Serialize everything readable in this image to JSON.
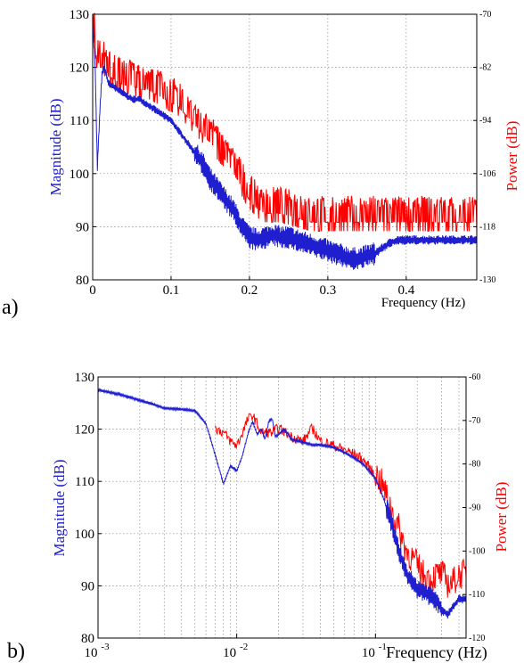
{
  "panels": [
    {
      "label": "a)"
    },
    {
      "label": "b)"
    }
  ],
  "chart_data": [
    {
      "type": "line",
      "x_scale": "linear",
      "xlim": [
        0,
        0.49
      ],
      "ylim": [
        80,
        130
      ],
      "y2lim": [
        -130,
        -70
      ],
      "xlabel": "Frequency (Hz)",
      "ylabel": "Magnitude (dB)",
      "y2label": "Power (dB)",
      "x_ticks": [
        0,
        0.1,
        0.2,
        0.3,
        0.4
      ],
      "x_tick_labels": [
        "0",
        "0.1",
        "0.2",
        "0.3",
        "0.4"
      ],
      "y_ticks": [
        80,
        90,
        100,
        110,
        120,
        130
      ],
      "y2_ticks": [
        -130,
        -118,
        -106,
        -94,
        -82,
        -70
      ],
      "grid": true,
      "colors": {
        "magnitude": "#1f1fd0",
        "power": "#ff0000"
      },
      "series": [
        {
          "axis": "left",
          "x": [
            0,
            0.003,
            0.006,
            0.008,
            0.01,
            0.012,
            0.015,
            0.02,
            0.03,
            0.04,
            0.05,
            0.06,
            0.07,
            0.08,
            0.09,
            0.1,
            0.11,
            0.12,
            0.13,
            0.14,
            0.15,
            0.16,
            0.17,
            0.18,
            0.19,
            0.2,
            0.21,
            0.22,
            0.23,
            0.24,
            0.25,
            0.26,
            0.27,
            0.28,
            0.29,
            0.3,
            0.31,
            0.32,
            0.33,
            0.34,
            0.35,
            0.36,
            0.37,
            0.38,
            0.39,
            0.4,
            0.41,
            0.42,
            0.43,
            0.44,
            0.45,
            0.46,
            0.47,
            0.48,
            0.49
          ],
          "y": [
            128,
            121,
            101,
            108,
            114,
            119,
            120,
            117,
            116,
            115,
            114,
            114,
            113,
            112,
            111,
            110,
            108,
            106,
            104,
            102,
            99,
            97,
            95,
            93,
            90,
            88,
            87.5,
            88,
            88.5,
            88,
            88,
            87.5,
            87,
            86.5,
            86,
            85.5,
            85,
            84.5,
            84,
            84,
            84.5,
            85,
            86,
            87,
            87.5,
            87.5,
            87.5,
            87.5,
            87.5,
            87.5,
            87.5,
            87.5,
            87.5,
            87.5,
            87.5
          ]
        },
        {
          "axis": "right",
          "x": [
            0,
            0.005,
            0.01,
            0.015,
            0.02,
            0.03,
            0.04,
            0.05,
            0.06,
            0.07,
            0.08,
            0.09,
            0.1,
            0.11,
            0.12,
            0.13,
            0.14,
            0.15,
            0.16,
            0.17,
            0.18,
            0.19,
            0.2,
            0.21,
            0.22,
            0.23,
            0.24,
            0.25,
            0.26,
            0.27,
            0.28,
            0.29,
            0.3,
            0.31,
            0.32,
            0.33,
            0.34,
            0.35,
            0.36,
            0.37,
            0.38,
            0.39,
            0.4,
            0.41,
            0.42,
            0.43,
            0.44,
            0.45,
            0.46,
            0.47,
            0.48,
            0.49
          ],
          "y": [
            -72,
            -80,
            -82,
            -82,
            -84,
            -85,
            -86,
            -86,
            -87,
            -87,
            -88,
            -89,
            -90,
            -91,
            -93,
            -95,
            -97,
            -99,
            -101,
            -103,
            -106,
            -109,
            -112,
            -114,
            -115,
            -115,
            -115,
            -115.5,
            -116,
            -116.5,
            -117,
            -117,
            -117,
            -117,
            -117,
            -117,
            -117,
            -117,
            -117,
            -117,
            -117,
            -117,
            -117,
            -117,
            -117,
            -117,
            -117,
            -117,
            -117,
            -117,
            -117,
            -117
          ]
        }
      ]
    },
    {
      "type": "line",
      "x_scale": "log",
      "xlim": [
        0.001,
        0.45
      ],
      "ylim": [
        80,
        130
      ],
      "y2lim": [
        -120,
        -60
      ],
      "xlabel": "Frequency (Hz)",
      "ylabel": "Magnitude (dB)",
      "y2label": "Power (dB)",
      "x_ticks": [
        0.001,
        0.01,
        0.1
      ],
      "x_tick_labels": [
        {
          "base": "10",
          "exp": "-3"
        },
        {
          "base": "10",
          "exp": "-2"
        },
        {
          "base": "10",
          "exp": "-1"
        }
      ],
      "y_ticks": [
        80,
        90,
        100,
        110,
        120,
        130
      ],
      "y2_ticks": [
        -120,
        -110,
        -100,
        -90,
        -80,
        -70,
        -60
      ],
      "grid": true,
      "colors": {
        "magnitude": "#1f1fd0",
        "power": "#ff0000"
      },
      "series": [
        {
          "axis": "left",
          "x": [
            0.001,
            0.002,
            0.003,
            0.004,
            0.005,
            0.006,
            0.007,
            0.008,
            0.009,
            0.01,
            0.011,
            0.012,
            0.013,
            0.014,
            0.015,
            0.016,
            0.017,
            0.018,
            0.019,
            0.02,
            0.022,
            0.025,
            0.03,
            0.035,
            0.04,
            0.05,
            0.06,
            0.07,
            0.08,
            0.09,
            0.1,
            0.11,
            0.12,
            0.13,
            0.14,
            0.15,
            0.16,
            0.17,
            0.18,
            0.19,
            0.2,
            0.22,
            0.25,
            0.28,
            0.3,
            0.33,
            0.36,
            0.4,
            0.45
          ],
          "y": [
            127.5,
            125.5,
            124,
            123.8,
            123.5,
            121,
            115,
            109.5,
            113,
            112,
            115,
            119,
            121.5,
            119,
            120,
            118,
            121.5,
            122,
            118.5,
            119,
            120,
            118,
            117.5,
            117,
            117,
            116.5,
            115.5,
            114.5,
            113.5,
            112,
            110.5,
            108,
            105,
            102,
            99,
            96,
            94,
            92,
            91,
            90,
            89.5,
            89,
            88,
            87,
            85.5,
            84.5,
            86,
            87.5,
            87.5
          ]
        },
        {
          "axis": "right",
          "x": [
            0.007,
            0.008,
            0.009,
            0.01,
            0.012,
            0.013,
            0.015,
            0.018,
            0.02,
            0.025,
            0.03,
            0.035,
            0.04,
            0.05,
            0.06,
            0.07,
            0.08,
            0.09,
            0.1,
            0.11,
            0.12,
            0.13,
            0.14,
            0.15,
            0.16,
            0.17,
            0.18,
            0.2,
            0.22,
            0.25,
            0.28,
            0.3,
            0.33,
            0.36,
            0.4,
            0.45
          ],
          "y": [
            -72,
            -73,
            -75,
            -76,
            -70,
            -69,
            -73,
            -73,
            -72,
            -74,
            -75,
            -72,
            -75,
            -76,
            -77,
            -78,
            -79,
            -81,
            -83,
            -85,
            -88,
            -91,
            -94,
            -96,
            -99,
            -101,
            -102,
            -104,
            -106,
            -107,
            -106,
            -106,
            -108,
            -108,
            -106,
            -106
          ]
        }
      ]
    }
  ]
}
